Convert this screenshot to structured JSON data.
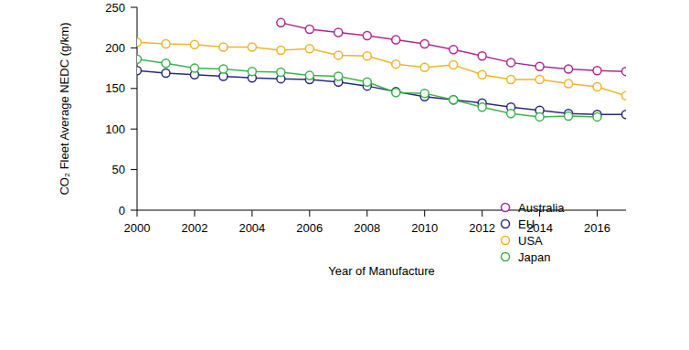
{
  "chart_data": {
    "type": "line",
    "x_label": "Year of Manufacture",
    "y_label": "CO₂ Fleet Average NEDC (g/km)",
    "x": [
      2000,
      2001,
      2002,
      2003,
      2004,
      2005,
      2006,
      2007,
      2008,
      2009,
      2010,
      2011,
      2012,
      2013,
      2014,
      2015,
      2016,
      2017
    ],
    "series": [
      {
        "name": "Australia",
        "color": "#b0288f",
        "values": [
          null,
          null,
          null,
          null,
          null,
          231,
          223,
          219,
          215,
          210,
          205,
          198,
          190,
          182,
          177,
          174,
          172,
          171
        ]
      },
      {
        "name": "EU",
        "color": "#2b2b7f",
        "values": [
          172,
          169,
          167,
          165,
          163,
          162,
          161,
          158,
          153,
          146,
          140,
          136,
          132,
          127,
          123,
          119,
          118,
          118
        ]
      },
      {
        "name": "USA",
        "color": "#f0b429",
        "values": [
          207,
          205,
          204,
          201,
          201,
          197,
          199,
          191,
          190,
          180,
          176,
          179,
          167,
          161,
          161,
          156,
          152,
          141
        ]
      },
      {
        "name": "Japan",
        "color": "#3cb44b",
        "values": [
          186,
          181,
          175,
          174,
          171,
          170,
          166,
          165,
          158,
          145,
          144,
          136,
          127,
          119,
          115,
          116,
          115,
          null
        ]
      }
    ],
    "xlim": [
      2000,
      2017
    ],
    "xticks": [
      2000,
      2002,
      2004,
      2006,
      2008,
      2010,
      2012,
      2014,
      2016
    ],
    "ylim": [
      0,
      250
    ],
    "yticks": [
      0,
      50,
      100,
      150,
      200,
      250
    ],
    "grid": false,
    "legend": "lower right",
    "marker": "circle",
    "line_style": "solid"
  }
}
